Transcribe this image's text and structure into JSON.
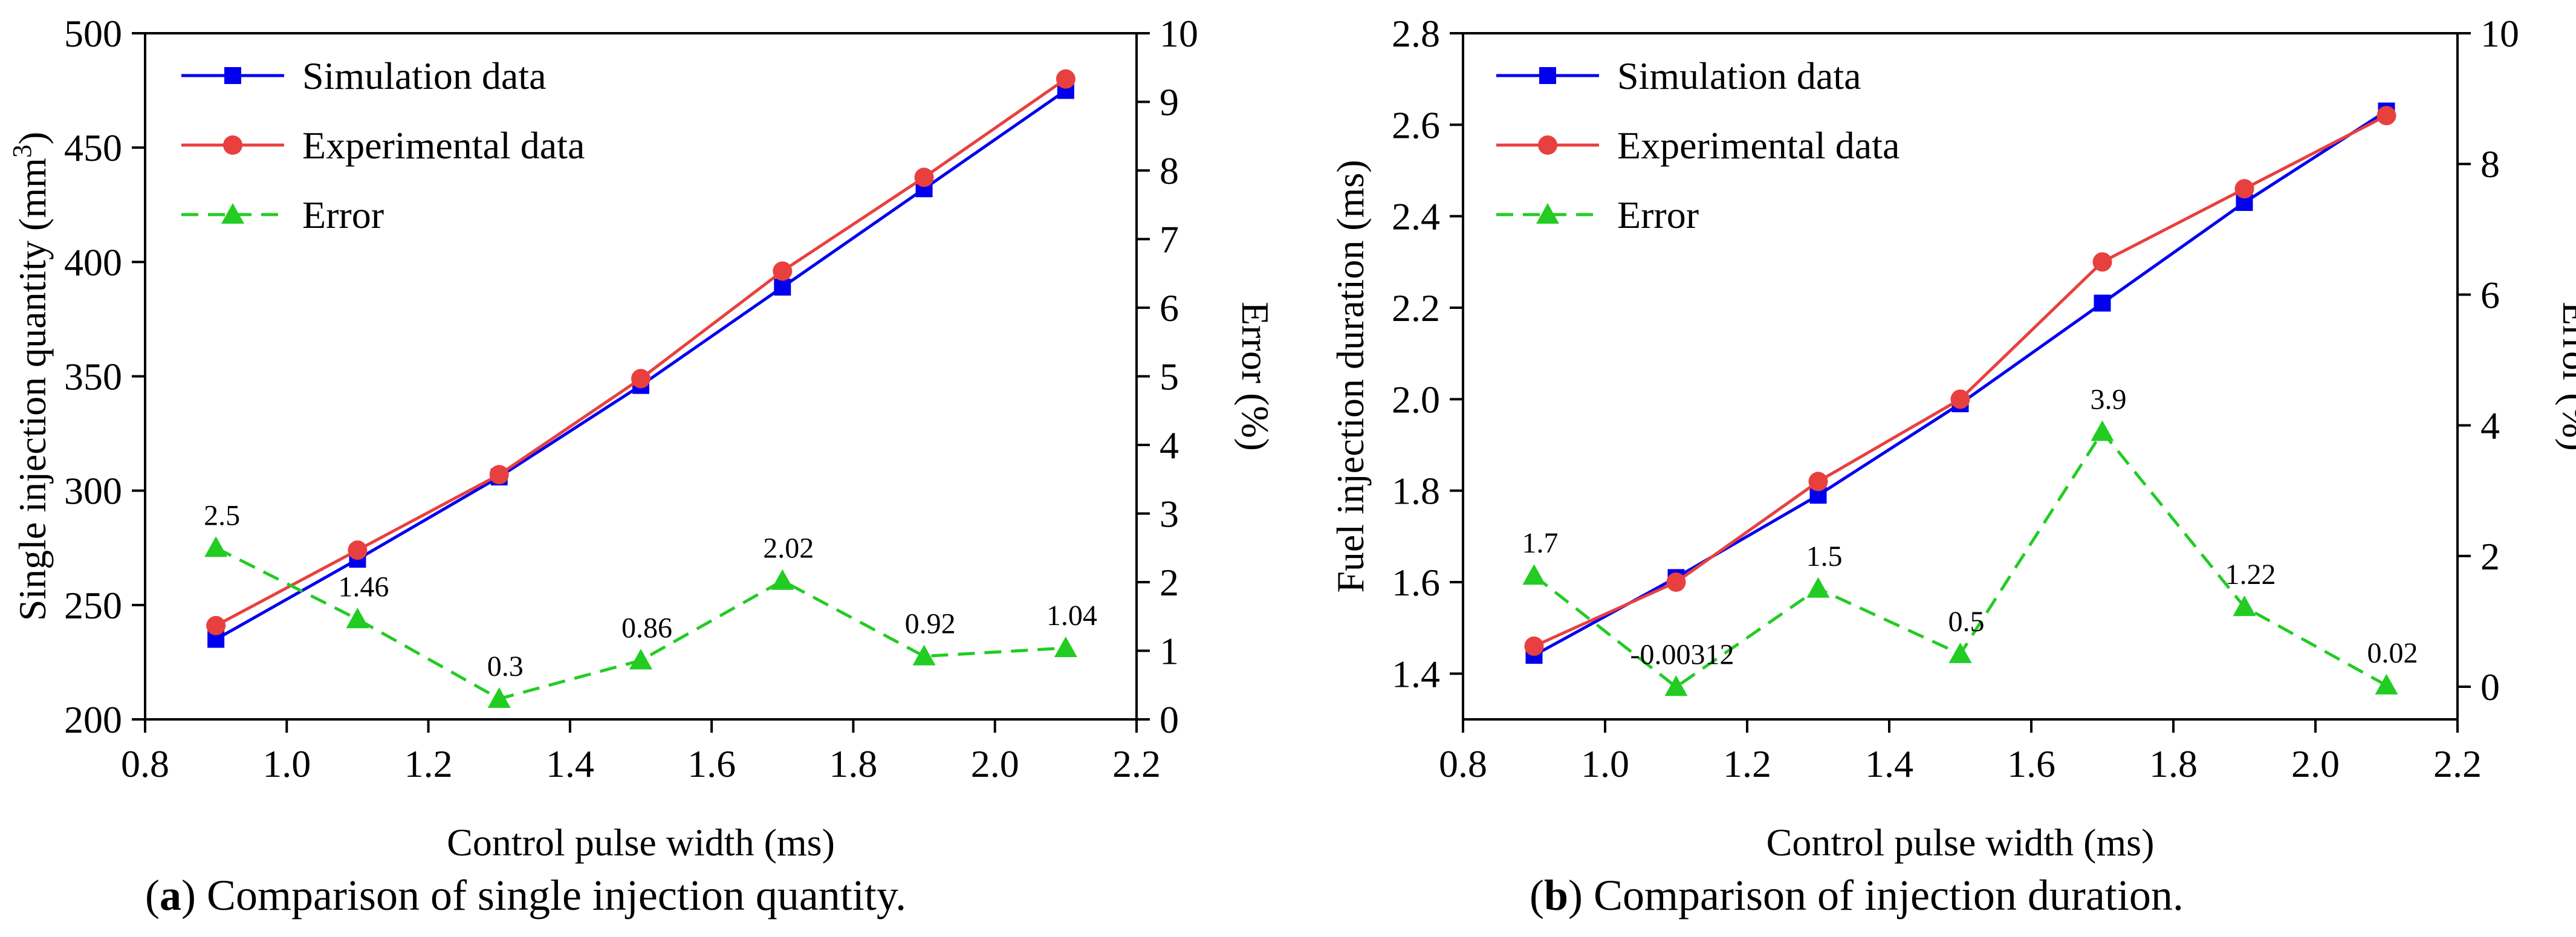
{
  "chart_data": [
    {
      "id": "a",
      "type": "line",
      "caption": {
        "letter": "a",
        "text": "Comparison of single injection quantity."
      },
      "xlabel": "Control pulse width (ms)",
      "ylabel": "Single injection quantity (mm",
      "ylabel_sup": "3",
      "ylabel_end": ")",
      "y2label": "Error (%)",
      "xlim": [
        0.8,
        2.2
      ],
      "ylim": [
        200,
        500
      ],
      "y2lim": [
        0,
        10
      ],
      "x_ticks": [
        "0.8",
        "1.0",
        "1.2",
        "1.4",
        "1.6",
        "1.8",
        "2.0",
        "2.2"
      ],
      "y_ticks": [
        "200",
        "250",
        "300",
        "350",
        "400",
        "450",
        "500"
      ],
      "y2_ticks": [
        "0",
        "1",
        "2",
        "3",
        "4",
        "5",
        "6",
        "7",
        "8",
        "9",
        "10"
      ],
      "x": [
        0.9,
        1.1,
        1.3,
        1.5,
        1.7,
        1.9,
        2.1
      ],
      "series": [
        {
          "name": "Simulation data",
          "axis": "left",
          "color": "#0000ee",
          "marker": "square",
          "dash": false,
          "values": [
            235,
            270,
            306,
            346,
            389,
            432,
            475
          ]
        },
        {
          "name": "Experimental data",
          "axis": "left",
          "color": "#e8403f",
          "marker": "circle",
          "dash": false,
          "values": [
            241,
            274,
            307,
            349,
            396,
            437,
            480
          ]
        },
        {
          "name": "Error",
          "axis": "right",
          "color": "#22cc22",
          "marker": "triangle",
          "dash": true,
          "values": [
            2.5,
            1.46,
            0.3,
            0.86,
            2.02,
            0.92,
            1.04
          ],
          "labels": [
            "2.5",
            "1.46",
            "0.3",
            "0.86",
            "2.02",
            "0.92",
            "1.04"
          ]
        }
      ]
    },
    {
      "id": "b",
      "type": "line",
      "caption": {
        "letter": "b",
        "text": "Comparison of injection duration."
      },
      "xlabel": "Control pulse width (ms)",
      "ylabel": "Fuel injection duration (ms)",
      "ylabel_sup": "",
      "ylabel_end": "",
      "y2label": "Error (%)",
      "xlim": [
        0.8,
        2.2
      ],
      "ylim": [
        1.3,
        2.8
      ],
      "y2lim": [
        -0.5,
        10
      ],
      "x_ticks": [
        "0.8",
        "1.0",
        "1.2",
        "1.4",
        "1.6",
        "1.8",
        "2.0",
        "2.2"
      ],
      "y_ticks": [
        "1.4",
        "1.6",
        "1.8",
        "2.0",
        "2.2",
        "2.4",
        "2.6",
        "2.8"
      ],
      "y2_ticks": [
        "0",
        "2",
        "4",
        "6",
        "8",
        "10"
      ],
      "x": [
        0.9,
        1.1,
        1.3,
        1.5,
        1.7,
        1.9,
        2.1
      ],
      "series": [
        {
          "name": "Simulation data",
          "axis": "left",
          "color": "#0000ee",
          "marker": "square",
          "dash": false,
          "values": [
            1.44,
            1.61,
            1.79,
            1.99,
            2.21,
            2.43,
            2.63
          ]
        },
        {
          "name": "Experimental data",
          "axis": "left",
          "color": "#e8403f",
          "marker": "circle",
          "dash": false,
          "values": [
            1.46,
            1.6,
            1.82,
            2.0,
            2.3,
            2.46,
            2.62
          ]
        },
        {
          "name": "Error",
          "axis": "right",
          "color": "#22cc22",
          "marker": "triangle",
          "dash": true,
          "values": [
            1.7,
            -0.00312,
            1.5,
            0.5,
            3.9,
            1.22,
            0.02
          ],
          "labels": [
            "1.7",
            "-0.00312",
            "1.5",
            "0.5",
            "3.9",
            "1.22",
            "0.02"
          ]
        }
      ]
    }
  ]
}
